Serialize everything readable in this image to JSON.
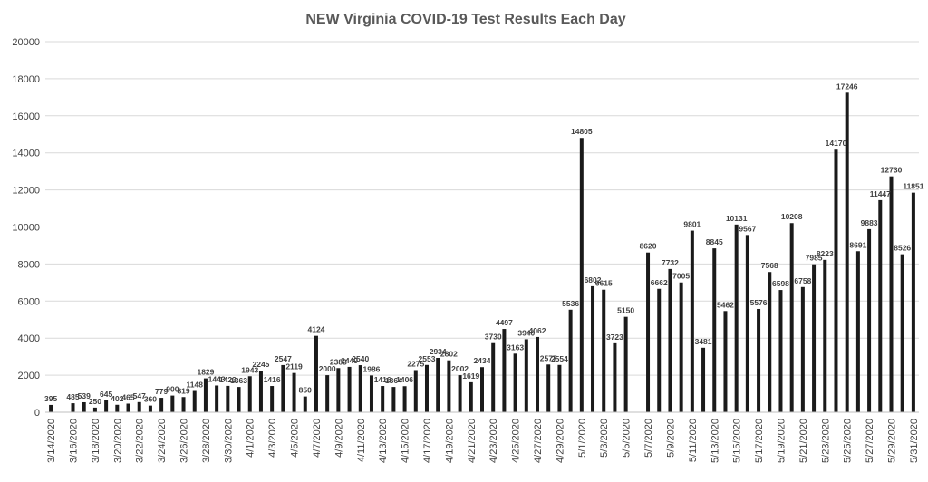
{
  "chart_data": {
    "type": "bar",
    "title": "NEW Virginia COVID-19 Test Results Each Day",
    "xlabel": "",
    "ylabel": "",
    "ylim": [
      0,
      20000
    ],
    "yticks": [
      "0",
      "2000",
      "4000",
      "6000",
      "8000",
      "10000",
      "12000",
      "14000",
      "16000",
      "18000",
      "20000"
    ],
    "grid": true,
    "legend": "none",
    "bar_color": "#1a1a1a",
    "categories": [
      "3/14/2020",
      "3/15/2020",
      "3/16/2020",
      "3/17/2020",
      "3/18/2020",
      "3/19/2020",
      "3/20/2020",
      "3/21/2020",
      "3/22/2020",
      "3/23/2020",
      "3/24/2020",
      "3/25/2020",
      "3/26/2020",
      "3/27/2020",
      "3/28/2020",
      "3/29/2020",
      "3/30/2020",
      "3/31/2020",
      "4/1/2020",
      "4/2/2020",
      "4/3/2020",
      "4/4/2020",
      "4/5/2020",
      "4/6/2020",
      "4/7/2020",
      "4/8/2020",
      "4/9/2020",
      "4/10/2020",
      "4/11/2020",
      "4/12/2020",
      "4/13/2020",
      "4/14/2020",
      "4/15/2020",
      "4/16/2020",
      "4/17/2020",
      "4/18/2020",
      "4/19/2020",
      "4/20/2020",
      "4/21/2020",
      "4/22/2020",
      "4/23/2020",
      "4/24/2020",
      "4/25/2020",
      "4/26/2020",
      "4/27/2020",
      "4/28/2020",
      "4/29/2020",
      "4/30/2020",
      "5/1/2020",
      "5/2/2020",
      "5/3/2020",
      "5/4/2020",
      "5/5/2020",
      "5/6/2020",
      "5/7/2020",
      "5/8/2020",
      "5/9/2020",
      "5/10/2020",
      "5/11/2020",
      "5/12/2020",
      "5/13/2020",
      "5/14/2020",
      "5/15/2020",
      "5/16/2020",
      "5/17/2020",
      "5/18/2020",
      "5/19/2020",
      "5/20/2020",
      "5/21/2020",
      "5/22/2020",
      "5/23/2020",
      "5/24/2020",
      "5/25/2020",
      "5/26/2020",
      "5/27/2020",
      "5/28/2020",
      "5/29/2020",
      "5/30/2020",
      "5/31/2020"
    ],
    "xtick_labels": [
      "3/14/2020",
      "3/16/2020",
      "3/18/2020",
      "3/20/2020",
      "3/22/2020",
      "3/24/2020",
      "3/26/2020",
      "3/28/2020",
      "3/30/2020",
      "4/1/2020",
      "4/3/2020",
      "4/5/2020",
      "4/7/2020",
      "4/9/2020",
      "4/11/2020",
      "4/13/2020",
      "4/15/2020",
      "4/17/2020",
      "4/19/2020",
      "4/21/2020",
      "4/23/2020",
      "4/25/2020",
      "4/27/2020",
      "4/29/2020",
      "5/1/2020",
      "5/3/2020",
      "5/5/2020",
      "5/7/2020",
      "5/9/2020",
      "5/11/2020",
      "5/13/2020",
      "5/15/2020",
      "5/17/2020",
      "5/19/2020",
      "5/21/2020",
      "5/23/2020",
      "5/25/2020",
      "5/27/2020",
      "5/29/2020",
      "5/31/2020"
    ],
    "values": [
      395,
      null,
      485,
      539,
      250,
      645,
      402,
      465,
      547,
      360,
      779,
      900,
      819,
      1148,
      1829,
      1443,
      1423,
      1363,
      1943,
      2245,
      1416,
      2547,
      2119,
      850,
      4124,
      2000,
      2383,
      2449,
      2540,
      1986,
      1416,
      1364,
      1406,
      2275,
      2553,
      2934,
      2802,
      2002,
      1619,
      2434,
      3730,
      4497,
      3163,
      3940,
      4062,
      2577,
      2554,
      5536,
      14805,
      6802,
      6615,
      3723,
      5150,
      null,
      8620,
      6662,
      7732,
      7005,
      9801,
      3481,
      8845,
      5462,
      10131,
      9567,
      5576,
      7568,
      6598,
      10208,
      6758,
      7985,
      8223,
      14170,
      17246,
      8691,
      9883,
      11447,
      12730,
      8526,
      11851
    ],
    "data_labels": [
      "395",
      "",
      "485",
      "539",
      "250",
      "645",
      "402",
      "465",
      "547",
      "360",
      "779",
      "900",
      "819",
      "1148",
      "1829",
      "1443",
      "1423",
      "1363",
      "1943",
      "2245",
      "1416",
      "2547",
      "2119",
      "850",
      "4124",
      "2000",
      "2383",
      "2449",
      "2540",
      "1986",
      "1416",
      "1364",
      "1406",
      "2275",
      "2553",
      "2934",
      "2802",
      "2002",
      "1619",
      "2434",
      "3730",
      "4497",
      "3163",
      "3940",
      "4062",
      "2577",
      "2554",
      "5536",
      "14805",
      "6802",
      "6615",
      "3723",
      "5150",
      "",
      "8620",
      "6662",
      "7732",
      "7005",
      "9801",
      "3481",
      "8845",
      "5462",
      "10131",
      "9567",
      "5576",
      "7568",
      "6598",
      "10208",
      "6758",
      "7985",
      "8223",
      "14170",
      "17246",
      "8691",
      "9883",
      "11447",
      "12730",
      "8526",
      "11851"
    ]
  }
}
